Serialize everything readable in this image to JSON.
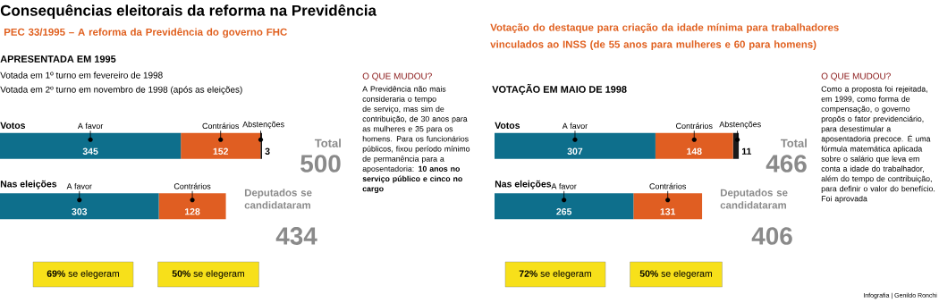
{
  "chart_data": [
    {
      "type": "bar",
      "orientation": "horizontal",
      "stacked": true,
      "data_labels": true,
      "title": "Consequências eleitorais da reforma na Previdência",
      "subtitle": "PEC 33/1995 – A reforma da Previdência do governo FHC",
      "categories": [
        "Votos",
        "Nas eleições"
      ],
      "series": [
        {
          "name": "A favor",
          "color": "#0e6f8c",
          "values": [
            345,
            303
          ]
        },
        {
          "name": "Contrários",
          "color": "#e05e22",
          "values": [
            152,
            128
          ]
        },
        {
          "name": "Abstenções",
          "color": "#1a1a1a",
          "values": [
            3,
            null
          ]
        }
      ],
      "annotations": [
        "APRESENTADA EM 1995",
        "Votada em 1º turno em fevereiro de 1998",
        "Votada em 2º turno em novembro de 1998 (após as eleições)",
        "O QUE MUDOU?",
        "A Previdência não mais consideraria o tempo de serviço, mas sim de contribuição, de 30 anos para as mulheres e 35 para os homens. Para os funcionários públicos, fixou período mínimo de permanência para a aposentadoria: **10 anos no serviço público e cinco no cargo**",
        "Total",
        "500",
        "Deputados se candidataram",
        "434",
        "**69%** se elegeram",
        "**50%** se elegeram"
      ]
    },
    {
      "type": "bar",
      "orientation": "horizontal",
      "stacked": true,
      "data_labels": true,
      "subtitle": "Votação do destaque para criação da idade mínima para trabalhadores vinculados ao INSS (de 55 anos para mulheres e 60 para homens)",
      "categories": [
        "Votos",
        "Nas eleições"
      ],
      "series": [
        {
          "name": "A favor",
          "color": "#0e6f8c",
          "values": [
            307,
            265
          ]
        },
        {
          "name": "Contrários",
          "color": "#e05e22",
          "values": [
            148,
            131
          ]
        },
        {
          "name": "Abstenções",
          "color": "#1a1a1a",
          "values": [
            11,
            null
          ]
        }
      ],
      "annotations": [
        "VOTAÇÃO EM MAIO DE 1998",
        "O QUE MUDOU?",
        "Como a proposta foi rejeitada, em 1999, como forma de compensação, o governo propôs o fator previdenciário, para desestimular a aposentadoria precoce. É uma fórmula matemática aplicada sobre o salário que leva em conta a idade do trabalhador, além do tempo de contribuição, para definir o valor do benefício. Foi aprovada",
        "Total",
        "466",
        "Deputados se candidataram",
        "406",
        "**72%** se elegeram",
        "**50%** se elegeram",
        "Infografia | Genildo Ronchi"
      ]
    }
  ]
}
